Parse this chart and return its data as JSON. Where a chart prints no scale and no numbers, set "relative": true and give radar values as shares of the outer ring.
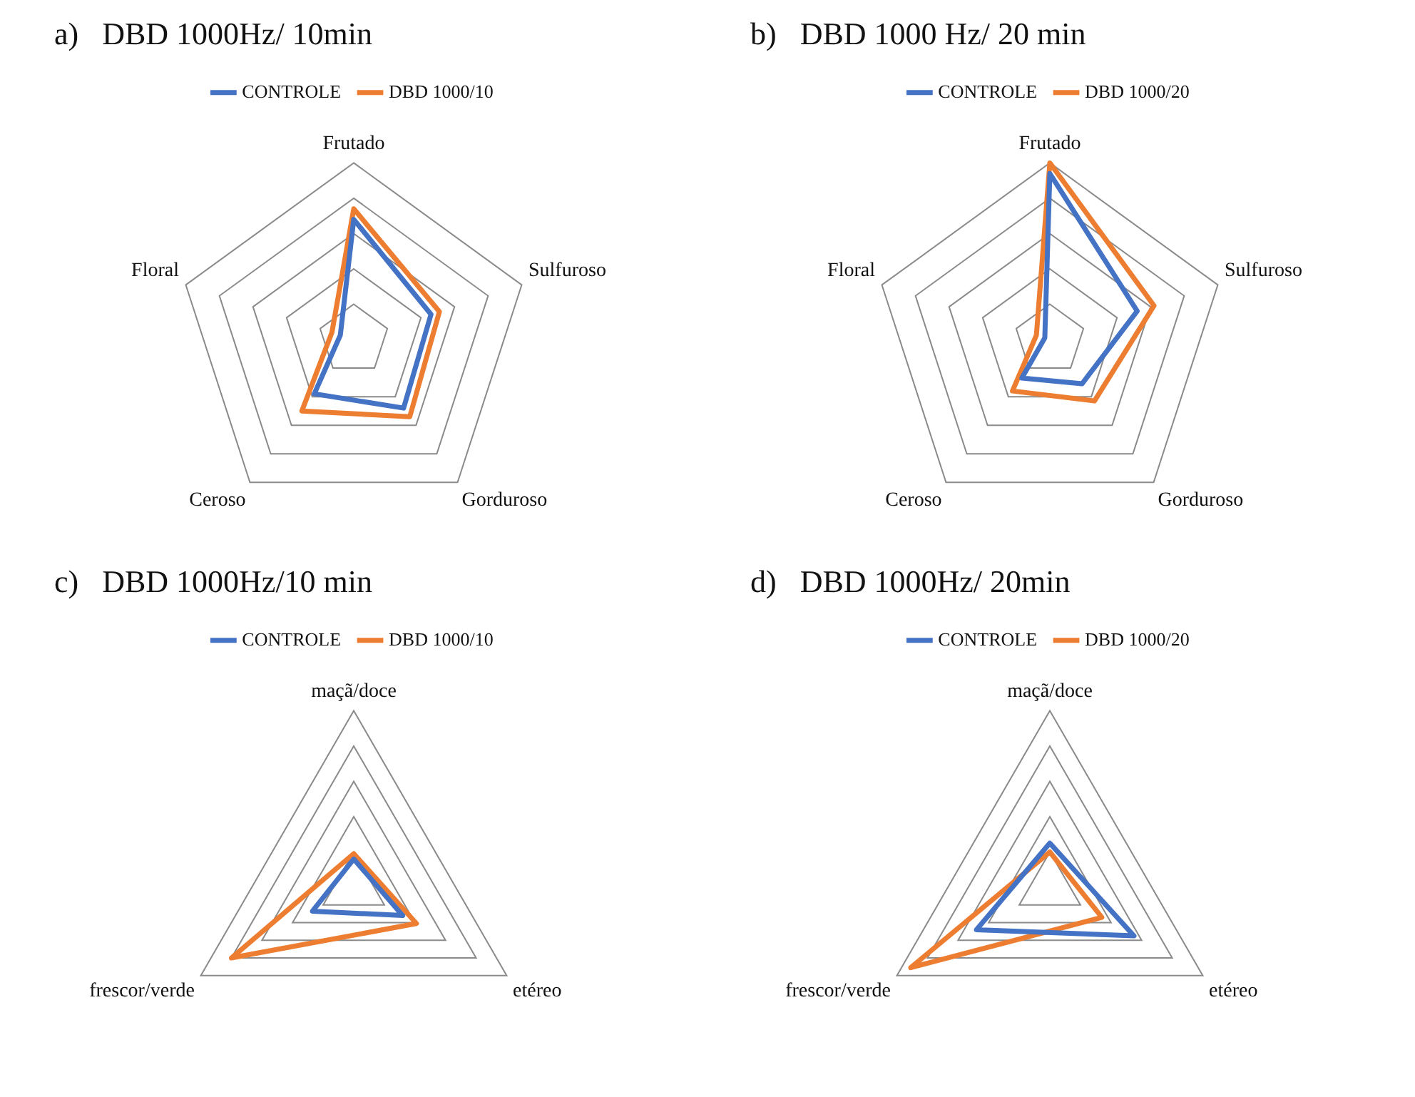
{
  "chart_data": [
    {
      "type": "radar",
      "title": "a)   DBD 1000Hz/ 10min",
      "categories": [
        "Frutado",
        "Sulfuroso",
        "Gorduroso",
        "Ceroso",
        "Floral"
      ],
      "relative": true,
      "legend": "top",
      "grid": true,
      "marker": "none",
      "series": [
        {
          "name": "CONTROLE",
          "color": "#4472c4",
          "values": [
            0.68,
            0.46,
            0.48,
            0.38,
            0.08
          ]
        },
        {
          "name": "DBD 1000/10",
          "color": "#ed7d31",
          "values": [
            0.74,
            0.51,
            0.54,
            0.5,
            0.13
          ]
        }
      ]
    },
    {
      "type": "radar",
      "title": "b)   DBD 1000 Hz/ 20 min",
      "categories": [
        "Frutado",
        "Sulfuroso",
        "Gorduroso",
        "Ceroso",
        "Floral"
      ],
      "relative": true,
      "legend": "top",
      "grid": true,
      "marker": "none",
      "series": [
        {
          "name": "CONTROLE",
          "color": "#4472c4",
          "values": [
            0.94,
            0.52,
            0.31,
            0.27,
            0.03
          ]
        },
        {
          "name": "DBD 1000/20",
          "color": "#ed7d31",
          "values": [
            1,
            0.62,
            0.43,
            0.36,
            0.08
          ]
        }
      ]
    },
    {
      "type": "radar",
      "title": "c)   DBD 1000Hz/10 min",
      "categories": [
        "maçã/doce",
        "etéreo",
        "frescor/verde"
      ],
      "relative": true,
      "legend": "top",
      "grid": true,
      "marker": "none",
      "series": [
        {
          "name": "CONTROLE",
          "color": "#4472c4",
          "values": [
            0.16,
            0.32,
            0.27
          ]
        },
        {
          "name": "DBD 1000/10",
          "color": "#ed7d31",
          "values": [
            0.19,
            0.41,
            0.8
          ]
        }
      ]
    },
    {
      "type": "radar",
      "title": "d)   DBD 1000Hz/ 20min",
      "categories": [
        "maçã/doce",
        "etéreo",
        "frescor/verde"
      ],
      "relative": true,
      "legend": "top",
      "grid": true,
      "marker": "none",
      "series": [
        {
          "name": "CONTROLE",
          "color": "#4472c4",
          "values": [
            0.25,
            0.55,
            0.48
          ]
        },
        {
          "name": "DBD 1000/20",
          "color": "#ed7d31",
          "values": [
            0.2,
            0.34,
            0.91
          ]
        }
      ]
    }
  ]
}
